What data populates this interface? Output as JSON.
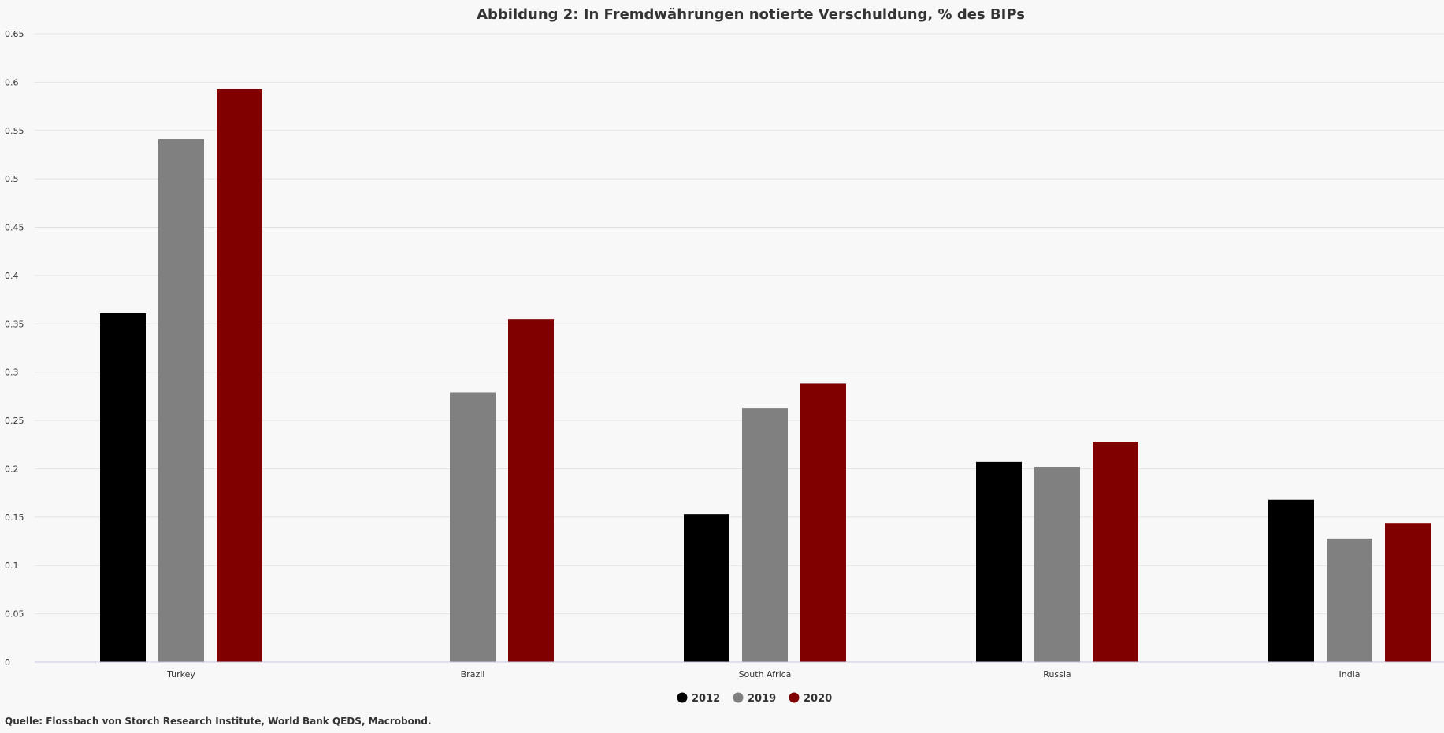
{
  "chart_data": {
    "type": "bar",
    "title": "Abbildung 2: In Fremdwährungen notierte Verschuldung, % des BIPs",
    "categories": [
      "Turkey",
      "Brazil",
      "South Africa",
      "Russia",
      "India"
    ],
    "series": [
      {
        "name": "2012",
        "color": "#000000",
        "values": [
          0.361,
          null,
          0.153,
          0.207,
          0.168
        ]
      },
      {
        "name": "2019",
        "color": "#808080",
        "values": [
          0.541,
          0.279,
          0.263,
          0.202,
          0.128
        ]
      },
      {
        "name": "2020",
        "color": "#800000",
        "values": [
          0.593,
          0.355,
          0.288,
          0.228,
          0.144
        ]
      }
    ],
    "ylim": [
      0,
      0.65
    ],
    "yticks": [
      "0",
      "0.05",
      "0.1",
      "0.15",
      "0.2",
      "0.25",
      "0.3",
      "0.35",
      "0.4",
      "0.45",
      "0.5",
      "0.55",
      "0.6",
      "0.65"
    ],
    "xlabel": "",
    "ylabel": "",
    "grid": true,
    "legend_position": "bottom-center",
    "source": "Quelle: Flossbach von Storch Research Institute, World Bank QEDS, Macrobond."
  }
}
